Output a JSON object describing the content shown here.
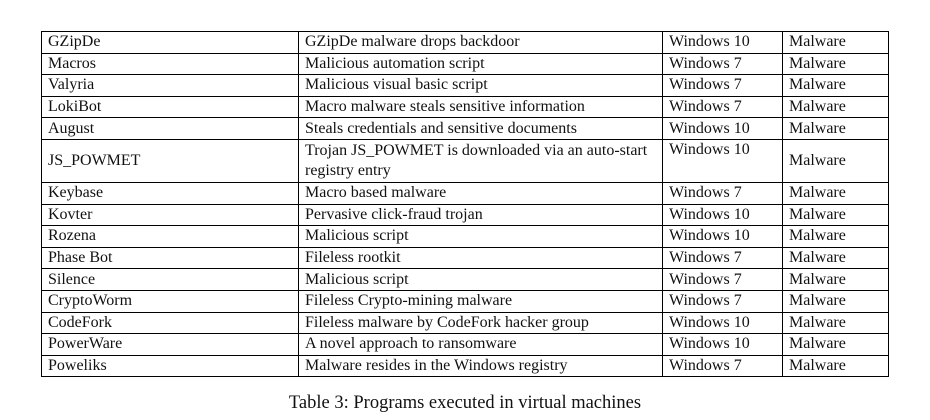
{
  "table": {
    "rows": [
      {
        "name": "GZipDe",
        "description": "GZipDe malware drops backdoor",
        "os": "Windows 10",
        "type": "Malware"
      },
      {
        "name": "Macros",
        "description": "Malicious automation script",
        "os": "Windows 7",
        "type": "Malware"
      },
      {
        "name": "Valyria",
        "description": "Malicious visual basic script",
        "os": "Windows 7",
        "type": "Malware"
      },
      {
        "name": "LokiBot",
        "description": "Macro malware steals sensitive information",
        "os": "Windows 7",
        "type": "Malware"
      },
      {
        "name": "August",
        "description": "Steals credentials and sensitive documents",
        "os": "Windows 10",
        "type": "Malware"
      },
      {
        "name": "JS_POWMET",
        "description": "Trojan JS_POWMET is downloaded via an auto-start registry entry",
        "os": "Windows 10",
        "type": "Malware"
      },
      {
        "name": "Keybase",
        "description": "Macro based malware",
        "os": "Windows 7",
        "type": "Malware"
      },
      {
        "name": "Kovter",
        "description": "Pervasive click-fraud trojan",
        "os": "Windows 10",
        "type": "Malware"
      },
      {
        "name": "Rozena",
        "description": "Malicious script",
        "os": "Windows 10",
        "type": "Malware"
      },
      {
        "name": "Phase Bot",
        "description": "Fileless rootkit",
        "os": "Windows 7",
        "type": "Malware"
      },
      {
        "name": "Silence",
        "description": "Malicious script",
        "os": "Windows 7",
        "type": "Malware"
      },
      {
        "name": "CryptoWorm",
        "description": "Fileless Crypto-mining malware",
        "os": "Windows 7",
        "type": "Malware"
      },
      {
        "name": "CodeFork",
        "description": "Fileless malware by CodeFork hacker group",
        "os": "Windows 10",
        "type": "Malware"
      },
      {
        "name": "PowerWare",
        "description": "A novel approach to ransomware",
        "os": "Windows 10",
        "type": "Malware"
      },
      {
        "name": "Poweliks",
        "description": "Malware resides in the Windows registry",
        "os": "Windows 7",
        "type": "Malware"
      }
    ]
  },
  "caption": "Table 3: Programs executed in virtual machines"
}
